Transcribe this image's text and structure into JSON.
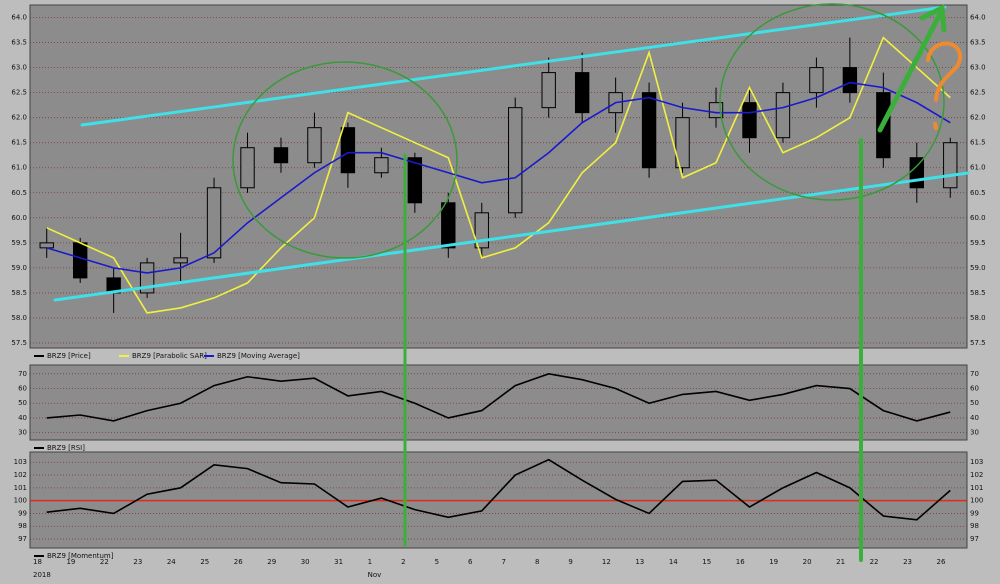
{
  "chart_data": [
    {
      "type": "candlestick",
      "series": [
        {
          "name": "BRZ9 [Price]",
          "color": "#000000",
          "open": [
            59.4,
            59.5,
            58.8,
            58.5,
            59.1,
            59.2,
            60.6,
            61.4,
            61.1,
            61.8,
            60.9,
            61.2,
            60.3,
            59.4,
            60.1,
            62.2,
            62.9,
            62.1,
            62.5,
            61.0,
            62.0,
            62.3,
            61.6,
            62.5,
            63.0,
            62.5,
            61.2,
            60.6
          ],
          "high": [
            59.8,
            59.6,
            59.0,
            59.2,
            59.7,
            60.8,
            61.7,
            61.6,
            62.1,
            61.9,
            61.4,
            61.3,
            60.5,
            60.3,
            62.4,
            63.2,
            63.3,
            62.8,
            62.7,
            62.3,
            62.6,
            62.6,
            62.7,
            63.2,
            63.6,
            62.9,
            61.5,
            61.6
          ],
          "low": [
            59.2,
            58.7,
            58.1,
            58.4,
            58.7,
            59.1,
            60.5,
            60.9,
            61.0,
            60.6,
            60.8,
            60.1,
            59.2,
            59.2,
            60.0,
            62.0,
            61.9,
            61.7,
            60.8,
            60.9,
            61.8,
            61.3,
            61.5,
            62.2,
            62.3,
            61.0,
            60.3,
            60.4
          ],
          "close": [
            59.5,
            58.8,
            58.5,
            59.1,
            59.2,
            60.6,
            61.4,
            61.1,
            61.8,
            60.9,
            61.2,
            60.3,
            59.4,
            60.1,
            62.2,
            62.9,
            62.1,
            62.5,
            61.0,
            62.0,
            62.3,
            61.6,
            62.5,
            63.0,
            62.5,
            61.2,
            60.6,
            61.5
          ]
        },
        {
          "name": "BRZ9 [Parabolic SAR]",
          "type": "line",
          "color": "#f0f040",
          "values": [
            59.8,
            59.5,
            59.2,
            58.1,
            58.2,
            58.4,
            58.7,
            59.4,
            60.0,
            62.1,
            61.8,
            61.5,
            61.2,
            59.2,
            59.4,
            59.9,
            60.9,
            61.5,
            63.3,
            60.8,
            61.1,
            62.6,
            61.3,
            61.6,
            62.0,
            63.6,
            63.0,
            62.4
          ]
        },
        {
          "name": "BRZ9 [Moving Average]",
          "type": "line",
          "color": "#1a1acc",
          "values": [
            59.4,
            59.2,
            59.0,
            58.9,
            59.0,
            59.3,
            59.9,
            60.4,
            60.9,
            61.3,
            61.3,
            61.1,
            60.9,
            60.7,
            60.8,
            61.3,
            61.9,
            62.3,
            62.4,
            62.2,
            62.1,
            62.1,
            62.2,
            62.4,
            62.7,
            62.6,
            62.3,
            61.9
          ]
        }
      ],
      "ylim": [
        57.4,
        64.25
      ],
      "yticks": [
        57.5,
        {
          "value": 58,
          "label": "58.0"
        },
        58.5,
        {
          "value": 59,
          "label": "59.0"
        },
        59.5,
        {
          "value": 60,
          "label": "60.0"
        },
        60.5,
        {
          "value": 61,
          "label": "61.0"
        },
        61.5,
        {
          "value": 62,
          "label": "62.0"
        },
        62.5,
        {
          "value": 63,
          "label": "63.0"
        },
        63.5,
        {
          "value": 64,
          "label": "64.0"
        }
      ],
      "grid": true
    },
    {
      "type": "line",
      "series": [
        {
          "name": "BRZ9 [RSI]",
          "color": "#000000",
          "values": [
            40,
            42,
            38,
            45,
            50,
            62,
            68,
            65,
            67,
            55,
            58,
            50,
            40,
            45,
            62,
            70,
            66,
            60,
            50,
            56,
            58,
            52,
            56,
            62,
            60,
            45,
            38,
            44
          ]
        }
      ],
      "ylim": [
        25,
        76
      ],
      "yticks": [
        30,
        40,
        50,
        60,
        70
      ],
      "grid": true
    },
    {
      "type": "line",
      "series": [
        {
          "name": "BRZ9 [Momentum]",
          "color": "#000000",
          "values": [
            99.1,
            99.4,
            99.0,
            100.5,
            101.0,
            102.8,
            102.5,
            101.4,
            101.3,
            99.5,
            100.2,
            99.3,
            98.7,
            99.2,
            102.0,
            103.2,
            101.6,
            100.1,
            99.0,
            101.5,
            101.6,
            99.5,
            101.0,
            102.2,
            101.0,
            98.8,
            98.5,
            100.8
          ]
        }
      ],
      "reference_line": {
        "value": 100,
        "color": "#e02a1a"
      },
      "ylim": [
        96.3,
        103.8
      ],
      "yticks": [
        97,
        98,
        99,
        100,
        101,
        102,
        103
      ],
      "grid": true,
      "categories": [
        "18",
        "19",
        "22",
        "23",
        "24",
        "25",
        "26",
        "29",
        "30",
        "31",
        "1",
        "2",
        "5",
        "6",
        "7",
        "8",
        "9",
        "12",
        "13",
        "14",
        "15",
        "16",
        "19",
        "20",
        "21",
        "22",
        "23",
        "26"
      ],
      "months": [
        "2018",
        null,
        null,
        null,
        null,
        null,
        null,
        null,
        null,
        null,
        "Nov",
        null,
        null,
        null,
        null,
        null,
        null,
        null,
        null,
        null,
        null,
        null,
        null,
        null,
        null,
        null,
        null,
        null
      ]
    }
  ]
}
